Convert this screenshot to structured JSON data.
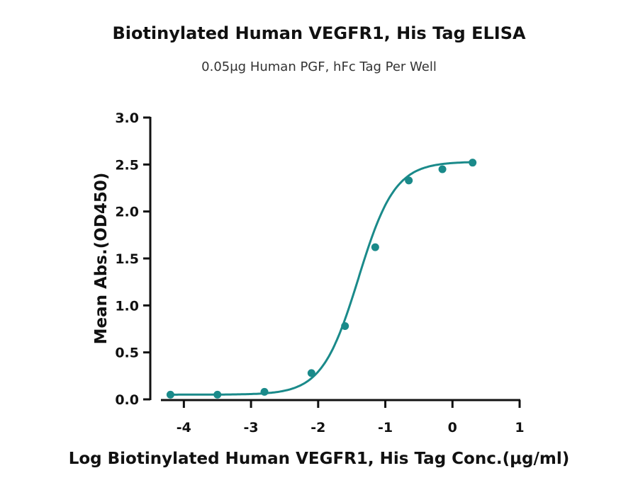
{
  "chart_data": {
    "type": "scatter",
    "title": "Biotinylated Human VEGFR1, His Tag ELISA",
    "subtitle": "0.05μg Human PGF, hFc Tag Per Well",
    "xlabel": "Log Biotinylated Human VEGFR1, His Tag Conc.(μg/ml)",
    "ylabel": "Mean Abs.(OD450)",
    "xlim": [
      -4.5,
      1
    ],
    "ylim": [
      0,
      3
    ],
    "xticks": [
      "-4",
      "-3",
      "-2",
      "-1",
      "0",
      "1"
    ],
    "yticks": [
      "0.0",
      "0.5",
      "1.0",
      "1.5",
      "2.0",
      "2.5",
      "3.0"
    ],
    "grid": false,
    "color": "#1a8a8a",
    "series": [
      {
        "x": [
          -4.2,
          -3.5,
          -2.8,
          -2.1,
          -1.6,
          -1.15,
          -0.65,
          -0.15,
          0.3
        ],
        "y": [
          0.05,
          0.05,
          0.08,
          0.28,
          0.78,
          1.62,
          2.33,
          2.45,
          2.52
        ]
      }
    ],
    "fit": {
      "bottom": 0.05,
      "top": 2.53,
      "logec50": -1.4,
      "hill": 1.6
    }
  }
}
